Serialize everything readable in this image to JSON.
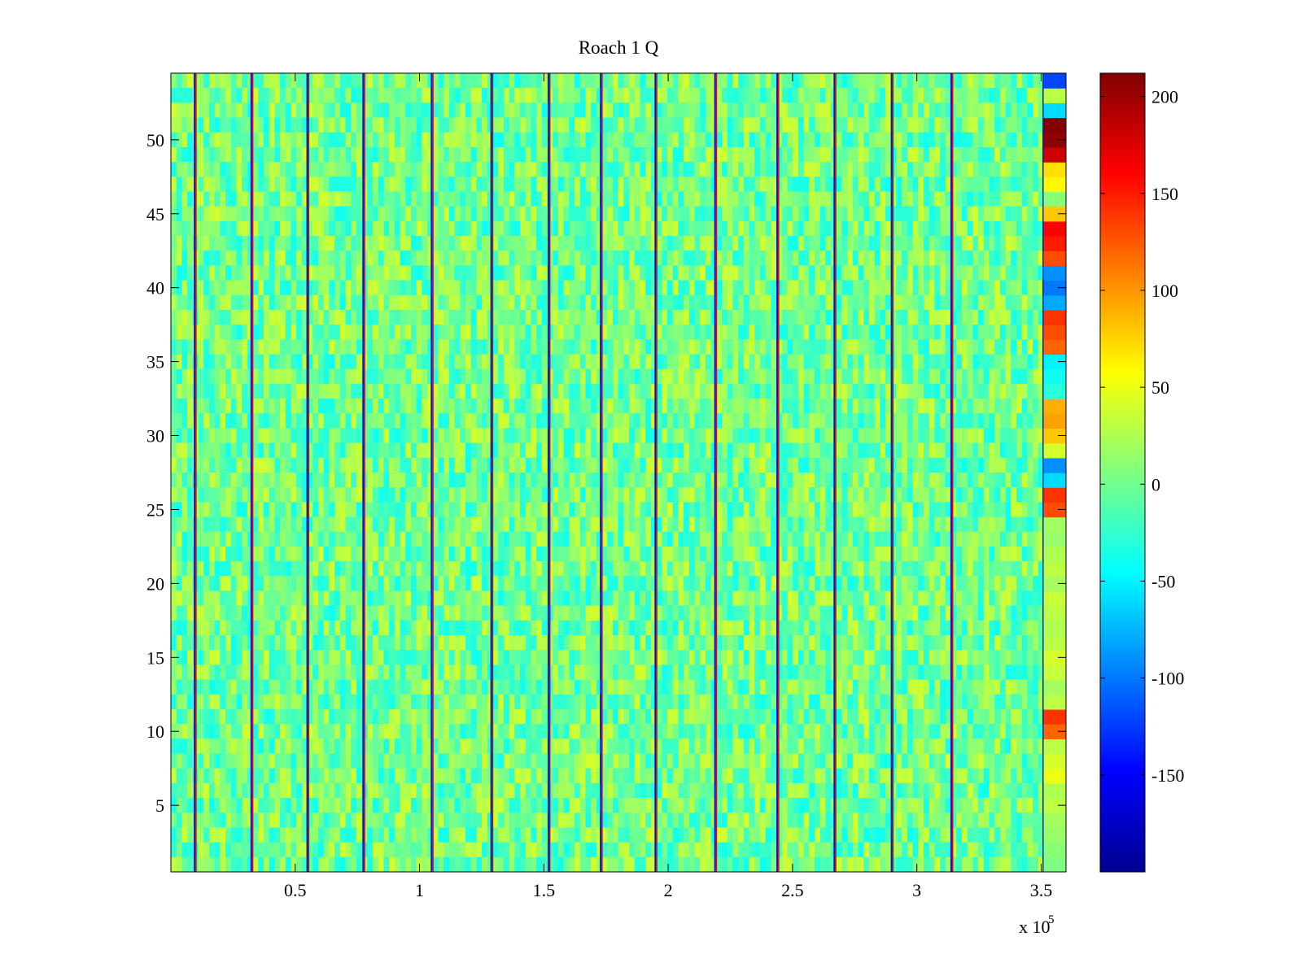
{
  "chart_data": {
    "type": "heatmap",
    "title": "Roach 1 Q",
    "xlabel": "",
    "ylabel": "",
    "x_exponent_label": "x 10",
    "x_exponent_power": "5",
    "xlim": [
      0,
      3.6
    ],
    "ylim": [
      0.5,
      54.5
    ],
    "rows": 54,
    "x_ticks": [
      0.5,
      1,
      1.5,
      2,
      2.5,
      3,
      3.5
    ],
    "x_tick_labels": [
      "0.5",
      "1",
      "1.5",
      "2",
      "2.5",
      "3",
      "3.5"
    ],
    "y_ticks": [
      5,
      10,
      15,
      20,
      25,
      30,
      35,
      40,
      45,
      50
    ],
    "y_tick_labels": [
      "5",
      "10",
      "15",
      "20",
      "25",
      "30",
      "35",
      "40",
      "45",
      "50"
    ],
    "colorbar": {
      "colormap": "jet",
      "clim": [
        -200,
        212
      ],
      "ticks": [
        200,
        150,
        100,
        50,
        0,
        -50,
        -100,
        -150
      ],
      "tick_labels": [
        "200",
        "150",
        "100",
        "50",
        "0",
        "-50",
        "-100",
        "-150"
      ]
    },
    "background_value_range": [
      -40,
      40
    ],
    "spike_columns_x": [
      0.097,
      0.325,
      0.55,
      0.775,
      1.05,
      1.29,
      1.52,
      1.73,
      1.95,
      2.19,
      2.44,
      2.67,
      2.9,
      3.14,
      3.51
    ],
    "edge_band": {
      "x_range": [
        3.51,
        3.6
      ],
      "row_values": [
        5,
        10,
        15,
        20,
        30,
        25,
        50,
        40,
        30,
        120,
        140,
        30,
        20,
        35,
        40,
        30,
        25,
        30,
        35,
        20,
        30,
        25,
        15,
        20,
        130,
        140,
        -60,
        -90,
        40,
        80,
        95,
        90,
        -30,
        -40,
        -50,
        120,
        130,
        140,
        -80,
        -100,
        -90,
        130,
        150,
        160,
        80,
        10,
        60,
        70,
        180,
        205,
        210,
        -60,
        30,
        -120
      ]
    }
  }
}
